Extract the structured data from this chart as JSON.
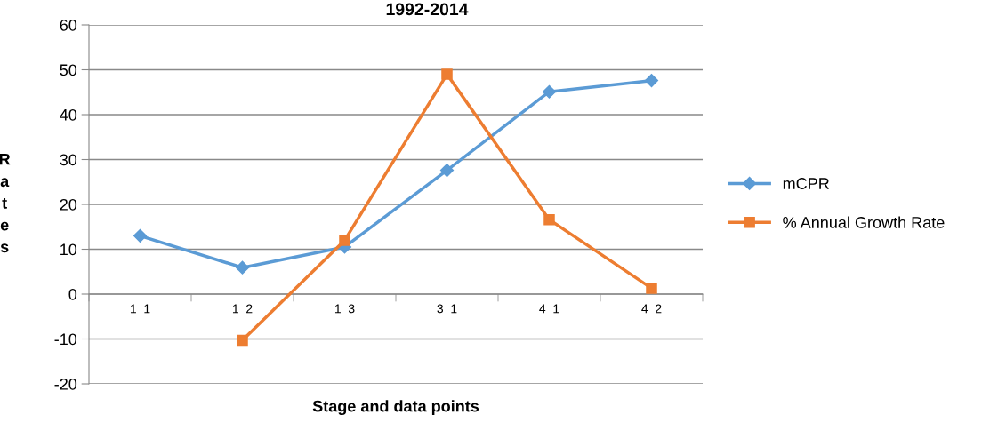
{
  "chart_data": {
    "type": "line",
    "title": "1992-2014",
    "xlabel": "Stage and data points",
    "ylabel": "Rates",
    "categories": [
      "1_1",
      "1_2",
      "1_3",
      "3_1",
      "4_1",
      "4_2"
    ],
    "series": [
      {
        "name": "mCPR",
        "color": "#5b9bd5",
        "marker": "diamond",
        "values": [
          13,
          5.9,
          10.5,
          27.6,
          45.1,
          47.6
        ]
      },
      {
        "name": "% Annual Growth Rate",
        "color": "#ed7d31",
        "marker": "square",
        "values": [
          null,
          -10.3,
          12,
          49,
          16.6,
          1.3
        ]
      }
    ],
    "ylim": [
      -20,
      60
    ],
    "yticks": [
      -20,
      -10,
      0,
      10,
      20,
      30,
      40,
      50,
      60
    ],
    "grid": "y",
    "legend": "right",
    "line_style": "solid"
  }
}
